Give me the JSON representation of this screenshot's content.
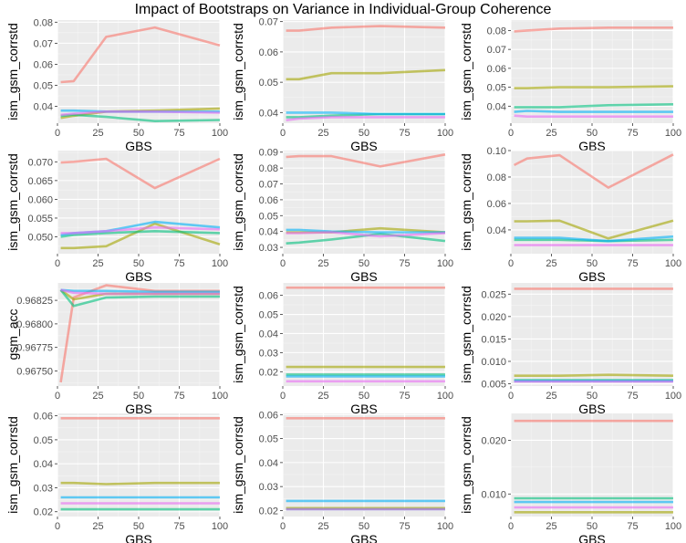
{
  "figure_title": "Impact of Bootstraps on Variance in Individual-Group Coherence",
  "colors": {
    "panel_bg": "#EBEBEB",
    "grid_major": "#FFFFFF",
    "grid_minor": "#F5F5F5",
    "tick_text": "#4D4D4D",
    "axis_title": "#000000",
    "series": [
      "#F8766D",
      "#A3A500",
      "#00BF7D",
      "#00B0F6",
      "#E76BF3"
    ],
    "series_opacity": 0.6
  },
  "chart_data": [
    {
      "type": "line",
      "xlabel": "GBS",
      "ylabel": "ism_gsm_corrstd",
      "xlim": [
        0,
        100
      ],
      "ylim": [
        0.032,
        0.081
      ],
      "xticks": [
        0,
        25,
        50,
        75,
        100
      ],
      "yticks": [
        0.04,
        0.05,
        0.06,
        0.07,
        0.08
      ],
      "ytick_labels": [
        "0.04",
        "0.05",
        "0.06",
        "0.07",
        "0.08"
      ],
      "x": [
        2,
        10,
        30,
        60,
        100
      ],
      "series": [
        {
          "values": [
            0.0515,
            0.052,
            0.073,
            0.0775,
            0.069
          ]
        },
        {
          "values": [
            0.0345,
            0.0355,
            0.0375,
            0.038,
            0.039
          ]
        },
        {
          "values": [
            0.0355,
            0.036,
            0.035,
            0.033,
            0.0335
          ]
        },
        {
          "values": [
            0.038,
            0.038,
            0.0375,
            0.0375,
            0.0375
          ]
        },
        {
          "values": [
            0.036,
            0.0365,
            0.0375,
            0.0375,
            0.037
          ]
        }
      ]
    },
    {
      "type": "line",
      "xlabel": "GBS",
      "ylabel": "ism_gsm_corrstd",
      "xlim": [
        0,
        100
      ],
      "ylim": [
        0.0365,
        0.0705
      ],
      "xticks": [
        0,
        25,
        50,
        75,
        100
      ],
      "yticks": [
        0.04,
        0.05,
        0.06,
        0.07
      ],
      "ytick_labels": [
        "0.04",
        "0.05",
        "0.06",
        "0.07"
      ],
      "x": [
        2,
        10,
        30,
        60,
        100
      ],
      "series": [
        {
          "values": [
            0.067,
            0.067,
            0.068,
            0.0685,
            0.068
          ]
        },
        {
          "values": [
            0.051,
            0.051,
            0.053,
            0.053,
            0.054
          ]
        },
        {
          "values": [
            0.0385,
            0.0385,
            0.039,
            0.0395,
            0.0395
          ]
        },
        {
          "values": [
            0.04,
            0.04,
            0.04,
            0.0395,
            0.0395
          ]
        },
        {
          "values": [
            0.0375,
            0.038,
            0.0385,
            0.0385,
            0.0385
          ]
        }
      ]
    },
    {
      "type": "line",
      "xlabel": "GBS",
      "ylabel": "ism_gsm_corrstd",
      "xlim": [
        0,
        100
      ],
      "ylim": [
        0.031,
        0.0855
      ],
      "xticks": [
        0,
        25,
        50,
        75,
        100
      ],
      "yticks": [
        0.04,
        0.05,
        0.06,
        0.07,
        0.08
      ],
      "ytick_labels": [
        "0.04",
        "0.05",
        "0.06",
        "0.07",
        "0.08"
      ],
      "x": [
        2,
        10,
        30,
        60,
        100
      ],
      "series": [
        {
          "values": [
            0.0795,
            0.08,
            0.081,
            0.0815,
            0.0815
          ]
        },
        {
          "values": [
            0.0495,
            0.0495,
            0.05,
            0.05,
            0.0505
          ]
        },
        {
          "values": [
            0.0395,
            0.0395,
            0.0395,
            0.0405,
            0.041
          ]
        },
        {
          "values": [
            0.037,
            0.0375,
            0.037,
            0.037,
            0.037
          ]
        },
        {
          "values": [
            0.035,
            0.0345,
            0.0345,
            0.0345,
            0.0345
          ]
        }
      ]
    },
    {
      "type": "line",
      "xlabel": "GBS",
      "ylabel": "ism_gsm_corrstd",
      "xlim": [
        0,
        100
      ],
      "ylim": [
        0.0455,
        0.073
      ],
      "xticks": [
        0,
        25,
        50,
        75,
        100
      ],
      "yticks": [
        0.05,
        0.055,
        0.06,
        0.065,
        0.07
      ],
      "ytick_labels": [
        "0.050",
        "0.055",
        "0.060",
        "0.065",
        "0.070"
      ],
      "x": [
        2,
        10,
        30,
        60,
        100
      ],
      "series": [
        {
          "values": [
            0.0698,
            0.07,
            0.0708,
            0.063,
            0.0708
          ]
        },
        {
          "values": [
            0.047,
            0.047,
            0.0475,
            0.0535,
            0.048
          ]
        },
        {
          "values": [
            0.05,
            0.0505,
            0.051,
            0.0515,
            0.051
          ]
        },
        {
          "values": [
            0.0505,
            0.051,
            0.0515,
            0.054,
            0.0525
          ]
        },
        {
          "values": [
            0.051,
            0.051,
            0.0515,
            0.0525,
            0.052
          ]
        }
      ]
    },
    {
      "type": "line",
      "xlabel": "GBS",
      "ylabel": "ism_gsm_corrstd",
      "xlim": [
        0,
        100
      ],
      "ylim": [
        0.026,
        0.091
      ],
      "xticks": [
        0,
        25,
        50,
        75,
        100
      ],
      "yticks": [
        0.03,
        0.04,
        0.05,
        0.06,
        0.07,
        0.08,
        0.09
      ],
      "ytick_labels": [
        "0.03",
        "0.04",
        "0.05",
        "0.06",
        "0.07",
        "0.08",
        "0.09"
      ],
      "x": [
        2,
        10,
        30,
        60,
        100
      ],
      "series": [
        {
          "values": [
            0.087,
            0.0875,
            0.0875,
            0.081,
            0.0885
          ]
        },
        {
          "values": [
            0.0395,
            0.0395,
            0.0395,
            0.042,
            0.0395
          ]
        },
        {
          "values": [
            0.0325,
            0.033,
            0.035,
            0.0385,
            0.034
          ]
        },
        {
          "values": [
            0.041,
            0.041,
            0.04,
            0.0395,
            0.0395
          ]
        },
        {
          "values": [
            0.039,
            0.039,
            0.0395,
            0.037,
            0.039
          ]
        }
      ]
    },
    {
      "type": "line",
      "xlabel": "GBS",
      "ylabel": "ism_gsm_corrstd",
      "xlim": [
        0,
        100
      ],
      "ylim": [
        0.022,
        0.1
      ],
      "xticks": [
        0,
        25,
        50,
        75,
        100
      ],
      "yticks": [
        0.04,
        0.06,
        0.08,
        0.1
      ],
      "ytick_labels": [
        "0.04",
        "0.06",
        "0.08",
        "0.10"
      ],
      "x": [
        2,
        10,
        30,
        60,
        100
      ],
      "series": [
        {
          "values": [
            0.089,
            0.094,
            0.0965,
            0.072,
            0.097
          ]
        },
        {
          "values": [
            0.0465,
            0.0465,
            0.047,
            0.0335,
            0.047
          ]
        },
        {
          "values": [
            0.0325,
            0.0325,
            0.0325,
            0.0315,
            0.0325
          ]
        },
        {
          "values": [
            0.034,
            0.034,
            0.034,
            0.0315,
            0.035
          ]
        },
        {
          "values": [
            0.0285,
            0.0285,
            0.0285,
            0.0285,
            0.0285
          ]
        }
      ]
    },
    {
      "type": "line",
      "xlabel": "GBS",
      "ylabel": "gsm_acc",
      "xlim": [
        0,
        100
      ],
      "ylim": [
        0.96734,
        0.968435
      ],
      "xticks": [
        0,
        25,
        50,
        75,
        100
      ],
      "yticks": [
        0.9675,
        0.96775,
        0.968,
        0.96825
      ],
      "ytick_labels": [
        "0.96750",
        "0.96775",
        "0.96800",
        "0.96825"
      ],
      "x": [
        2,
        10,
        30,
        60,
        100
      ],
      "series": [
        {
          "values": [
            0.96738,
            0.96828,
            0.96841,
            0.96835,
            0.96835
          ]
        },
        {
          "values": [
            0.96836,
            0.96826,
            0.96832,
            0.96832,
            0.96832
          ]
        },
        {
          "values": [
            0.96836,
            0.96819,
            0.96828,
            0.96829,
            0.96829
          ]
        },
        {
          "values": [
            0.96836,
            0.96835,
            0.96835,
            0.96834,
            0.96834
          ]
        },
        {
          "values": [
            0.96836,
            0.96833,
            0.96832,
            0.96832,
            0.96832
          ]
        }
      ]
    },
    {
      "type": "line",
      "xlabel": "GBS",
      "ylabel": "ism_gsm_corrstd",
      "xlim": [
        0,
        100
      ],
      "ylim": [
        0.0125,
        0.0665
      ],
      "xticks": [
        0,
        25,
        50,
        75,
        100
      ],
      "yticks": [
        0.02,
        0.03,
        0.04,
        0.05,
        0.06
      ],
      "ytick_labels": [
        "0.02",
        "0.03",
        "0.04",
        "0.05",
        "0.06"
      ],
      "x": [
        2,
        10,
        30,
        60,
        100
      ],
      "series": [
        {
          "values": [
            0.064,
            0.064,
            0.064,
            0.064,
            0.064
          ]
        },
        {
          "values": [
            0.0225,
            0.0225,
            0.0225,
            0.0225,
            0.0225
          ]
        },
        {
          "values": [
            0.0185,
            0.0185,
            0.0185,
            0.0185,
            0.0185
          ]
        },
        {
          "values": [
            0.0175,
            0.0175,
            0.0175,
            0.0175,
            0.0175
          ]
        },
        {
          "values": [
            0.015,
            0.015,
            0.015,
            0.015,
            0.015
          ]
        }
      ]
    },
    {
      "type": "line",
      "xlabel": "GBS",
      "ylabel": "ism_gsm_corrstd",
      "xlim": [
        0,
        100
      ],
      "ylim": [
        0.0045,
        0.0275
      ],
      "xticks": [
        0,
        25,
        50,
        75,
        100
      ],
      "yticks": [
        0.005,
        0.01,
        0.015,
        0.02,
        0.025
      ],
      "ytick_labels": [
        "0.005",
        "0.010",
        "0.015",
        "0.020",
        "0.025"
      ],
      "x": [
        2,
        10,
        30,
        60,
        100
      ],
      "series": [
        {
          "values": [
            0.0262,
            0.0262,
            0.0262,
            0.0262,
            0.0262
          ]
        },
        {
          "values": [
            0.0068,
            0.0068,
            0.0068,
            0.007,
            0.0068
          ]
        },
        {
          "values": [
            0.0058,
            0.0058,
            0.0058,
            0.0058,
            0.0058
          ]
        },
        {
          "values": [
            0.0056,
            0.0056,
            0.0056,
            0.0056,
            0.0056
          ]
        },
        {
          "values": [
            0.0055,
            0.0055,
            0.0055,
            0.0055,
            0.0055
          ]
        }
      ]
    },
    {
      "type": "line",
      "xlabel": "GBS",
      "ylabel": "ism_gsm_corrstd",
      "xlim": [
        0,
        100
      ],
      "ylim": [
        0.018,
        0.061
      ],
      "xticks": [
        0,
        25,
        50,
        75,
        100
      ],
      "yticks": [
        0.02,
        0.03,
        0.04,
        0.05,
        0.06
      ],
      "ytick_labels": [
        "0.02",
        "0.03",
        "0.04",
        "0.05",
        "0.06"
      ],
      "x": [
        2,
        10,
        30,
        60,
        100
      ],
      "series": [
        {
          "values": [
            0.059,
            0.059,
            0.059,
            0.059,
            0.059
          ]
        },
        {
          "values": [
            0.032,
            0.032,
            0.0315,
            0.032,
            0.032
          ]
        },
        {
          "values": [
            0.021,
            0.021,
            0.021,
            0.021,
            0.021
          ]
        },
        {
          "values": [
            0.026,
            0.026,
            0.026,
            0.026,
            0.026
          ]
        },
        {
          "values": [
            0.0235,
            0.0235,
            0.0235,
            0.0235,
            0.0235
          ]
        }
      ]
    },
    {
      "type": "line",
      "xlabel": "GBS",
      "ylabel": "ism_gsm_corrstd",
      "xlim": [
        0,
        100
      ],
      "ylim": [
        0.0175,
        0.0605
      ],
      "xticks": [
        0,
        25,
        50,
        75,
        100
      ],
      "yticks": [
        0.02,
        0.03,
        0.04,
        0.05,
        0.06
      ],
      "ytick_labels": [
        "0.02",
        "0.03",
        "0.04",
        "0.05",
        "0.06"
      ],
      "x": [
        2,
        10,
        30,
        60,
        100
      ],
      "series": [
        {
          "values": [
            0.0585,
            0.0585,
            0.0585,
            0.0585,
            0.0585
          ]
        },
        {
          "values": [
            0.021,
            0.021,
            0.021,
            0.021,
            0.021
          ]
        },
        {
          "values": [
            0.0205,
            0.0205,
            0.0205,
            0.0205,
            0.0205
          ]
        },
        {
          "values": [
            0.024,
            0.024,
            0.024,
            0.024,
            0.024
          ]
        },
        {
          "values": [
            0.0205,
            0.0205,
            0.0205,
            0.0205,
            0.0205
          ]
        }
      ]
    },
    {
      "type": "line",
      "xlabel": "GBS",
      "ylabel": "ism_gsm_corrstd",
      "xlim": [
        0,
        100
      ],
      "ylim": [
        0.0058,
        0.025
      ],
      "xticks": [
        0,
        25,
        50,
        75,
        100
      ],
      "yticks": [
        0.01,
        0.02
      ],
      "ytick_labels": [
        "0.010",
        "0.020"
      ],
      "x": [
        2,
        10,
        30,
        60,
        100
      ],
      "series": [
        {
          "values": [
            0.0236,
            0.0236,
            0.0236,
            0.0236,
            0.0236
          ]
        },
        {
          "values": [
            0.0066,
            0.0066,
            0.0066,
            0.0066,
            0.0066
          ]
        },
        {
          "values": [
            0.0092,
            0.0092,
            0.0092,
            0.0092,
            0.0092
          ]
        },
        {
          "values": [
            0.0085,
            0.0085,
            0.0085,
            0.0085,
            0.0085
          ]
        },
        {
          "values": [
            0.0075,
            0.0075,
            0.0075,
            0.0075,
            0.0075
          ]
        }
      ]
    }
  ]
}
